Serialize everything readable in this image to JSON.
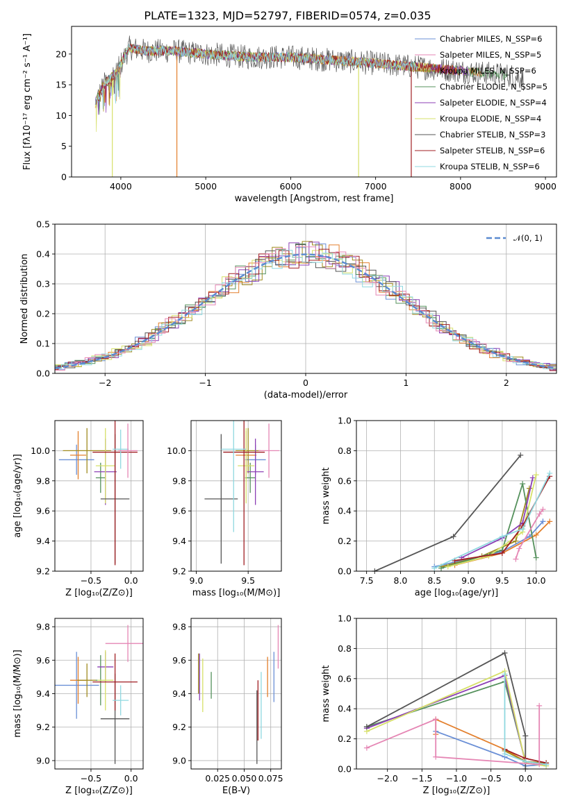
{
  "colors": [
    "#6a8fd6",
    "#e37f2c",
    "#a08a1e",
    "#55915c",
    "#8c3fb5",
    "#d6e068",
    "#555555",
    "#a01e22",
    "#8fd8e0",
    "#e586b4"
  ],
  "chart_data": [
    {
      "id": "spectrum",
      "type": "line",
      "title": "PLATE=1323, MJD=52797, FIBERID=0574, z=0.035",
      "xlabel": "wavelength [Angstrom, rest frame]",
      "ylabel": "Flux [fλ10⁻¹⁷ erg cm⁻² s⁻¹ A⁻¹]",
      "xlim": [
        3420,
        9130
      ],
      "ylim": [
        0,
        24.5
      ],
      "xticks": [
        4000,
        5000,
        6000,
        7000,
        8000,
        9000
      ],
      "yticks": [
        0,
        5,
        10,
        15,
        20
      ],
      "series": [
        {
          "name": "Chabrier MILES, N_SSP=6"
        },
        {
          "name": "Salpeter MILES, N_SSP=5"
        },
        {
          "name": "Kroupa MILES, N_SSP=6"
        },
        {
          "name": "Chabrier ELODIE, N_SSP=5"
        },
        {
          "name": "Salpeter ELODIE, N_SSP=4"
        },
        {
          "name": "Kroupa ELODIE, N_SSP=4"
        },
        {
          "name": "Chabrier STELIB, N_SSP=3"
        },
        {
          "name": "Salpeter STELIB, N_SSP=6"
        },
        {
          "name": "Kroupa STELIB, N_SSP=6"
        }
      ],
      "continuum": {
        "x": [
          3700,
          3800,
          3950,
          4100,
          4300,
          4600,
          5000,
          5500,
          6000,
          6500,
          7000,
          7400,
          7800,
          8200,
          8600,
          8750
        ],
        "y": [
          12,
          15,
          17,
          21,
          20.5,
          20.5,
          20,
          19.5,
          19.5,
          19,
          18.5,
          18,
          17.5,
          17,
          16.5,
          16
        ]
      },
      "legend": "upper right"
    },
    {
      "id": "residuals",
      "type": "line",
      "xlabel": "(data-model)/error",
      "ylabel": "Normed distribution",
      "xlim": [
        -2.5,
        2.5
      ],
      "ylim": [
        0,
        0.5
      ],
      "xticks": [
        -2,
        -1,
        0,
        1,
        2
      ],
      "yticks": [
        0.0,
        0.1,
        0.2,
        0.3,
        0.4,
        0.5
      ],
      "reference": {
        "name": "𝒩(0, 1)",
        "mu": 0,
        "sigma": 1
      },
      "legend": "upper right"
    },
    {
      "id": "age_vs_Z",
      "type": "scatter",
      "xlabel": "Z [log₁₀(Z/Z⊙)]",
      "ylabel": "age  [log₁₀(age/yr)]",
      "xlim": [
        -0.95,
        0.15
      ],
      "ylim": [
        9.2,
        10.2
      ],
      "xticks": [
        -0.5,
        0.0
      ],
      "yticks": [
        9.2,
        9.4,
        9.6,
        9.8,
        10.0
      ],
      "points": [
        {
          "x": -0.68,
          "y": 9.94,
          "xerr": 0.22,
          "yerr": 0.1
        },
        {
          "x": -0.66,
          "y": 9.97,
          "xerr": 0.1,
          "yerr": 0.16
        },
        {
          "x": -0.55,
          "y": 10.0,
          "xerr": 0.3,
          "yerr": 0.15
        },
        {
          "x": -0.38,
          "y": 9.82,
          "xerr": 0.06,
          "yerr": 0.1
        },
        {
          "x": -0.32,
          "y": 9.86,
          "xerr": 0.14,
          "yerr": 0.22
        },
        {
          "x": -0.32,
          "y": 9.9,
          "xerr": 0.12,
          "yerr": 0.25
        },
        {
          "x": -0.2,
          "y": 9.68,
          "xerr": 0.18,
          "yerr": 0.43
        },
        {
          "x": -0.2,
          "y": 9.99,
          "xerr": 0.28,
          "yerr": 0.75
        },
        {
          "x": -0.13,
          "y": 10.01,
          "xerr": 0.1,
          "yerr": 0.13
        },
        {
          "x": -0.04,
          "y": 10.0,
          "xerr": 0.12,
          "yerr": 0.18
        }
      ]
    },
    {
      "id": "age_vs_mass",
      "type": "scatter",
      "xlabel": "mass [log₁₀(M/M⊙)]",
      "ylabel": "",
      "xlim": [
        8.95,
        9.82
      ],
      "ylim": [
        9.2,
        10.2
      ],
      "xticks": [
        9.0,
        9.5
      ],
      "yticks": [
        9.2,
        9.4,
        9.6,
        9.8,
        10.0
      ],
      "points": [
        {
          "x": 9.57,
          "y": 9.94,
          "xerr": 0.1,
          "yerr": 0.1
        },
        {
          "x": 9.48,
          "y": 9.97,
          "xerr": 0.1,
          "yerr": 0.16
        },
        {
          "x": 9.5,
          "y": 10.0,
          "xerr": 0.12,
          "yerr": 0.15
        },
        {
          "x": 9.52,
          "y": 9.82,
          "xerr": 0.05,
          "yerr": 0.1
        },
        {
          "x": 9.57,
          "y": 9.86,
          "xerr": 0.08,
          "yerr": 0.22
        },
        {
          "x": 9.48,
          "y": 9.9,
          "xerr": 0.08,
          "yerr": 0.25
        },
        {
          "x": 9.24,
          "y": 9.68,
          "xerr": 0.16,
          "yerr": 0.43
        },
        {
          "x": 9.46,
          "y": 9.99,
          "xerr": 0.2,
          "yerr": 0.75
        },
        {
          "x": 9.36,
          "y": 10.01,
          "xerr": 0.12,
          "yerr": 0.55
        },
        {
          "x": 9.7,
          "y": 10.0,
          "xerr": 0.1,
          "yerr": 0.18
        }
      ]
    },
    {
      "id": "mass_weight_vs_age",
      "type": "line",
      "xlabel": "age  [log₁₀(age/yr)]",
      "ylabel": "mass weight",
      "xlim": [
        7.35,
        10.3
      ],
      "ylim": [
        0,
        1.0
      ],
      "xticks": [
        7.5,
        8.0,
        8.5,
        9.0,
        9.5,
        10.0
      ],
      "yticks": [
        0.0,
        0.2,
        0.4,
        0.6,
        0.8,
        1.0
      ],
      "series": [
        {
          "x": [
            8.5,
            8.8,
            9.5,
            9.9,
            10.1,
            10.1
          ],
          "y": [
            0.03,
            0.06,
            0.13,
            0.23,
            0.33,
            0.33
          ]
        },
        {
          "x": [
            8.8,
            9.5,
            10.0,
            10.2
          ],
          "y": [
            0.04,
            0.12,
            0.24,
            0.33
          ]
        },
        {
          "x": [
            8.6,
            9.2,
            9.7,
            9.9
          ],
          "y": [
            0.03,
            0.1,
            0.2,
            0.55
          ]
        },
        {
          "x": [
            8.6,
            9.5,
            9.8,
            10.0
          ],
          "y": [
            0.02,
            0.14,
            0.58,
            0.09
          ]
        },
        {
          "x": [
            8.9,
            9.5,
            9.8,
            9.95
          ],
          "y": [
            0.09,
            0.22,
            0.32,
            0.62
          ]
        },
        {
          "x": [
            8.7,
            9.3,
            9.8,
            10.0
          ],
          "y": [
            0.03,
            0.1,
            0.26,
            0.64
          ]
        },
        {
          "x": [
            7.62,
            8.78,
            9.77
          ],
          "y": [
            0.0,
            0.23,
            0.77
          ]
        },
        {
          "x": [
            8.8,
            9.5,
            9.8,
            10.2
          ],
          "y": [
            0.07,
            0.12,
            0.3,
            0.63
          ]
        },
        {
          "x": [
            8.5,
            9.5,
            9.8,
            10.2
          ],
          "y": [
            0.02,
            0.23,
            0.28,
            0.65
          ]
        },
        {
          "x": [
            9.7,
            9.75,
            10.05,
            10.1
          ],
          "y": [
            0.08,
            0.15,
            0.38,
            0.41
          ]
        }
      ]
    },
    {
      "id": "mass_vs_Z",
      "type": "scatter",
      "xlabel": "Z [log₁₀(Z/Z⊙)]",
      "ylabel": "mass [log₁₀(M/M⊙)]",
      "xlim": [
        -0.95,
        0.15
      ],
      "ylim": [
        8.95,
        9.85
      ],
      "xticks": [
        -0.5,
        0.0
      ],
      "yticks": [
        9.0,
        9.2,
        9.4,
        9.6,
        9.8
      ],
      "points": [
        {
          "x": -0.68,
          "y": 9.45,
          "xerr": 0.28,
          "yerr": 0.2
        },
        {
          "x": -0.66,
          "y": 9.48,
          "xerr": 0.1,
          "yerr": 0.14
        },
        {
          "x": -0.55,
          "y": 9.48,
          "xerr": 0.12,
          "yerr": 0.1
        },
        {
          "x": -0.38,
          "y": 9.48,
          "xerr": 0.06,
          "yerr": 0.15
        },
        {
          "x": -0.32,
          "y": 9.56,
          "xerr": 0.1,
          "yerr": 0.09
        },
        {
          "x": -0.32,
          "y": 9.48,
          "xerr": 0.1,
          "yerr": 0.18
        },
        {
          "x": -0.2,
          "y": 9.25,
          "xerr": 0.18,
          "yerr": 0.27
        },
        {
          "x": -0.2,
          "y": 9.47,
          "xerr": 0.28,
          "yerr": 0.17
        },
        {
          "x": -0.13,
          "y": 9.36,
          "xerr": 0.1,
          "yerr": 0.09
        },
        {
          "x": -0.04,
          "y": 9.7,
          "xerr": 0.28,
          "yerr": 0.11
        }
      ]
    },
    {
      "id": "mass_vs_ebv",
      "type": "scatter",
      "xlabel": "E(B-V)",
      "ylabel": "",
      "xlim": [
        0.0,
        0.085
      ],
      "ylim": [
        8.95,
        9.85
      ],
      "xticks": [
        0.025,
        0.05,
        0.075
      ],
      "xticklabels": [
        "0.025",
        "0.050",
        "0.075"
      ],
      "yticks": [
        9.0,
        9.2,
        9.4,
        9.6,
        9.8
      ],
      "points": [
        {
          "x": 0.078,
          "y": 9.5,
          "xerr": 0.0,
          "yerr": 0.15
        },
        {
          "x": 0.072,
          "y": 9.5,
          "xerr": 0.0,
          "yerr": 0.12
        },
        {
          "x": 0.007,
          "y": 9.52,
          "xerr": 0.0,
          "yerr": 0.12
        },
        {
          "x": 0.019,
          "y": 9.45,
          "xerr": 0.0,
          "yerr": 0.08
        },
        {
          "x": 0.008,
          "y": 9.5,
          "xerr": 0.0,
          "yerr": 0.14
        },
        {
          "x": 0.011,
          "y": 9.45,
          "xerr": 0.0,
          "yerr": 0.16
        },
        {
          "x": 0.062,
          "y": 9.2,
          "xerr": 0.0,
          "yerr": 0.22
        },
        {
          "x": 0.063,
          "y": 9.3,
          "xerr": 0.0,
          "yerr": 0.18
        },
        {
          "x": 0.066,
          "y": 9.33,
          "xerr": 0.0,
          "yerr": 0.2
        },
        {
          "x": 0.082,
          "y": 9.68,
          "xerr": 0.0,
          "yerr": 0.13
        }
      ]
    },
    {
      "id": "mass_weight_vs_Z",
      "type": "line",
      "xlabel": "Z [log₁₀(Z/Z⊙)]",
      "ylabel": "mass weight",
      "xlim": [
        -2.45,
        0.45
      ],
      "ylim": [
        0,
        1.0
      ],
      "xticks": [
        -2.0,
        -1.5,
        -1.0,
        -0.5,
        0.0
      ],
      "yticks": [
        0.0,
        0.2,
        0.4,
        0.6,
        0.8,
        1.0
      ],
      "series": [
        {
          "x": [
            -1.3,
            -0.3,
            0.0,
            0.3
          ],
          "y": [
            0.25,
            0.08,
            0.02,
            0.03
          ]
        },
        {
          "x": [
            -1.3,
            -1.3,
            -0.3,
            0.0
          ],
          "y": [
            0.23,
            0.33,
            0.13,
            0.05
          ]
        },
        {
          "x": [
            -0.3,
            0.0,
            0.3
          ],
          "y": [
            0.12,
            0.05,
            0.04
          ]
        },
        {
          "x": [
            -2.3,
            -0.3,
            0.0,
            0.3
          ],
          "y": [
            0.28,
            0.58,
            0.05,
            0.03
          ]
        },
        {
          "x": [
            -2.3,
            -0.3,
            0.0
          ],
          "y": [
            0.27,
            0.62,
            0.04
          ]
        },
        {
          "x": [
            -2.3,
            -0.3,
            0.0,
            0.3
          ],
          "y": [
            0.25,
            0.65,
            0.04,
            0.02
          ]
        },
        {
          "x": [
            -2.3,
            -0.3,
            0.0,
            0.0
          ],
          "y": [
            0.28,
            0.77,
            0.22,
            0.0
          ]
        },
        {
          "x": [
            -0.3,
            0.0,
            0.3
          ],
          "y": [
            0.13,
            0.07,
            0.04
          ]
        },
        {
          "x": [
            -0.3,
            -0.3,
            0.0,
            0.3
          ],
          "y": [
            0.63,
            0.1,
            0.05,
            0.03
          ]
        },
        {
          "x": [
            -2.3,
            -1.3,
            -1.3,
            0.2,
            0.2
          ],
          "y": [
            0.14,
            0.33,
            0.08,
            0.03,
            0.42
          ]
        }
      ]
    }
  ]
}
